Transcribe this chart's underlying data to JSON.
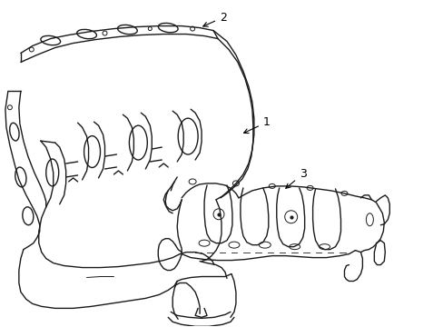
{
  "background_color": "#ffffff",
  "line_color": "#1a1a1a",
  "line_width": 1.0,
  "label_1": "1",
  "label_2": "2",
  "label_3": "3",
  "figsize": [
    4.89,
    3.6
  ],
  "dpi": 100
}
